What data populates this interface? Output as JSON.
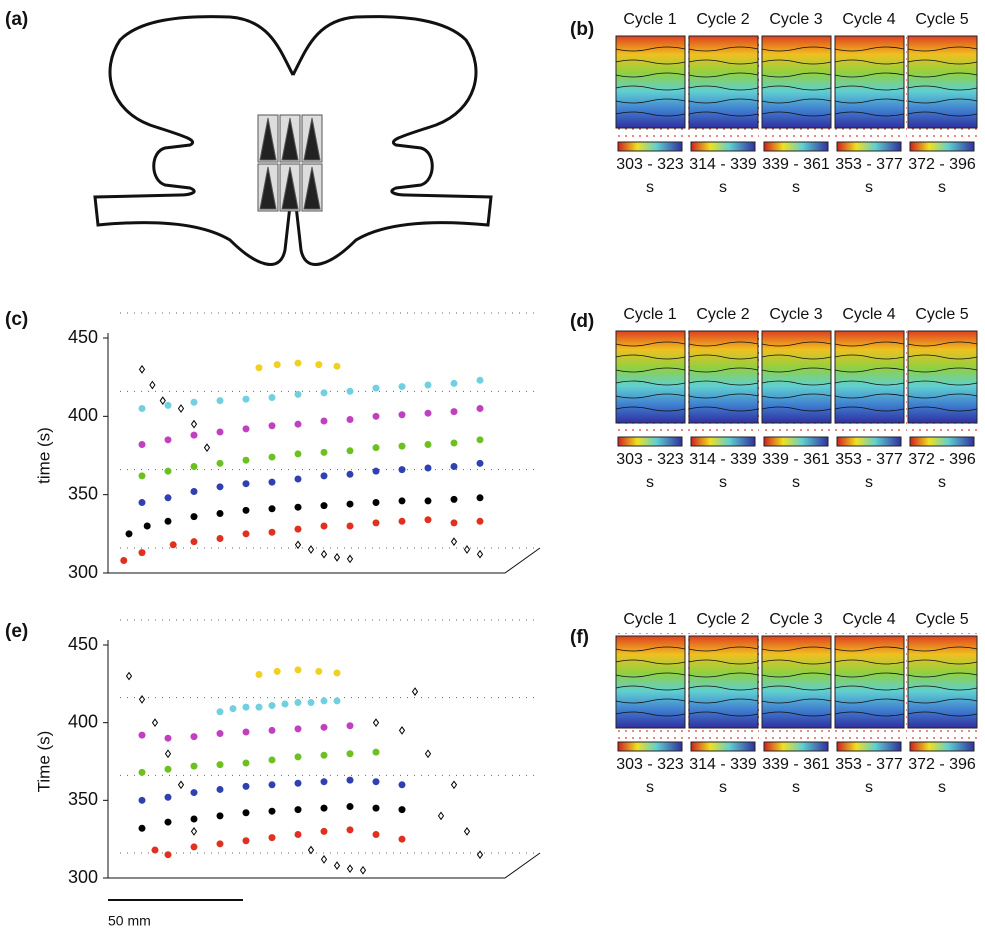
{
  "panel_labels": [
    "(a)",
    "(b)",
    "(c)",
    "(d)",
    "(e)",
    "(f)"
  ],
  "maps": [
    {
      "titles": [
        "Cycle 1",
        "Cycle 2",
        "Cycle 3",
        "Cycle 4",
        "Cycle 5"
      ],
      "ranges": [
        "303 - 323",
        "314 - 339",
        "339 - 361",
        "353 - 377",
        "372 - 396"
      ],
      "units": [
        "s",
        "s",
        "s",
        "s",
        "s"
      ]
    },
    {
      "titles": [
        "Cycle 1",
        "Cycle 2",
        "Cycle 3",
        "Cycle 4",
        "Cycle 5"
      ],
      "ranges": [
        "303 - 323",
        "314 - 339",
        "339 - 361",
        "353 - 377",
        "372 - 396"
      ],
      "units": [
        "s",
        "s",
        "s",
        "s",
        "s"
      ]
    },
    {
      "titles": [
        "Cycle 1",
        "Cycle 2",
        "Cycle 3",
        "Cycle 4",
        "Cycle 5"
      ],
      "ranges": [
        "303 - 323",
        "314 - 339",
        "339 - 361",
        "353 - 377",
        "372 - 396"
      ],
      "units": [
        "s",
        "s",
        "s",
        "s",
        "s"
      ]
    }
  ],
  "scale_bar": "50 mm",
  "chart_data": [
    {
      "type": "scatter",
      "ylabel": "time (s)",
      "ylim": [
        300,
        450
      ],
      "yticks": [
        300,
        350,
        400,
        450
      ],
      "xlim": [
        0,
        150
      ],
      "series": [
        {
          "color": "#e03020",
          "marker": "circle",
          "x": [
            3,
            10,
            22,
            30,
            40,
            50,
            60,
            70,
            80,
            90,
            100,
            110,
            120,
            130,
            140
          ],
          "values": [
            308,
            313,
            318,
            320,
            322,
            325,
            326,
            328,
            330,
            330,
            332,
            333,
            334,
            332,
            333
          ]
        },
        {
          "color": "#000000",
          "marker": "circle",
          "x": [
            5,
            12,
            20,
            30,
            40,
            50,
            60,
            70,
            80,
            90,
            100,
            110,
            120,
            130,
            140
          ],
          "values": [
            325,
            330,
            333,
            336,
            338,
            340,
            341,
            342,
            343,
            344,
            345,
            346,
            346,
            347,
            348
          ]
        },
        {
          "color": "#3040b0",
          "marker": "circle",
          "x": [
            10,
            20,
            30,
            40,
            50,
            60,
            70,
            80,
            90,
            100,
            110,
            120,
            130,
            140
          ],
          "values": [
            345,
            348,
            352,
            355,
            357,
            358,
            360,
            362,
            363,
            365,
            366,
            367,
            368,
            370
          ]
        },
        {
          "color": "#6cc020",
          "marker": "circle",
          "x": [
            10,
            20,
            30,
            40,
            50,
            60,
            70,
            80,
            90,
            100,
            110,
            120,
            130,
            140
          ],
          "values": [
            362,
            365,
            368,
            370,
            372,
            374,
            376,
            377,
            378,
            380,
            381,
            382,
            383,
            385
          ]
        },
        {
          "color": "#c040c0",
          "marker": "circle",
          "x": [
            10,
            20,
            30,
            40,
            50,
            60,
            70,
            80,
            90,
            100,
            110,
            120,
            130,
            140
          ],
          "values": [
            382,
            385,
            388,
            390,
            392,
            394,
            395,
            397,
            398,
            400,
            401,
            402,
            403,
            405
          ]
        },
        {
          "color": "#70d0e0",
          "marker": "circle",
          "x": [
            10,
            20,
            30,
            40,
            50,
            60,
            70,
            80,
            90,
            100,
            110,
            120,
            130,
            140
          ],
          "values": [
            405,
            407,
            409,
            410,
            411,
            412,
            414,
            415,
            416,
            418,
            419,
            420,
            421,
            423
          ]
        },
        {
          "color": "#f0d020",
          "marker": "circle",
          "x": [
            55,
            62,
            70,
            78,
            85
          ],
          "values": [
            431,
            433,
            434,
            433,
            432
          ]
        },
        {
          "color": "#000000",
          "marker": "diamond",
          "x": [
            10,
            14,
            18,
            25,
            30,
            35,
            70,
            75,
            80,
            85,
            90,
            130,
            135,
            140
          ],
          "values": [
            430,
            420,
            410,
            405,
            395,
            380,
            318,
            315,
            312,
            310,
            309,
            320,
            315,
            312
          ]
        }
      ]
    },
    {
      "type": "scatter",
      "ylabel": "Time (s)",
      "ylim": [
        300,
        450
      ],
      "yticks": [
        300,
        350,
        400,
        450
      ],
      "xlim": [
        0,
        150
      ],
      "series": [
        {
          "color": "#e03020",
          "marker": "circle",
          "x": [
            15,
            20,
            30,
            40,
            50,
            60,
            70,
            80,
            90,
            100,
            110
          ],
          "values": [
            318,
            315,
            320,
            322,
            324,
            326,
            328,
            330,
            331,
            328,
            325
          ]
        },
        {
          "color": "#000000",
          "marker": "circle",
          "x": [
            10,
            20,
            30,
            40,
            50,
            60,
            70,
            80,
            90,
            100,
            110
          ],
          "values": [
            332,
            336,
            338,
            340,
            342,
            343,
            344,
            345,
            346,
            345,
            344
          ]
        },
        {
          "color": "#3040b0",
          "marker": "circle",
          "x": [
            10,
            20,
            30,
            40,
            50,
            60,
            70,
            80,
            90,
            100,
            110
          ],
          "values": [
            350,
            352,
            355,
            357,
            359,
            360,
            361,
            362,
            363,
            362,
            360
          ]
        },
        {
          "color": "#6cc020",
          "marker": "circle",
          "x": [
            10,
            20,
            30,
            40,
            50,
            60,
            70,
            80,
            90,
            100
          ],
          "values": [
            368,
            370,
            372,
            373,
            374,
            376,
            378,
            379,
            380,
            381
          ]
        },
        {
          "color": "#c040c0",
          "marker": "circle",
          "x": [
            10,
            20,
            30,
            40,
            50,
            60,
            70,
            80,
            90
          ],
          "values": [
            392,
            390,
            391,
            393,
            394,
            395,
            396,
            397,
            398
          ]
        },
        {
          "color": "#70d0e0",
          "marker": "circle",
          "x": [
            40,
            45,
            50,
            55,
            60,
            65,
            70,
            75,
            80,
            85
          ],
          "values": [
            407,
            409,
            410,
            410,
            411,
            412,
            413,
            413,
            414,
            414
          ]
        },
        {
          "color": "#f0d020",
          "marker": "circle",
          "x": [
            55,
            62,
            70,
            78,
            85
          ],
          "values": [
            431,
            433,
            434,
            433,
            432
          ]
        },
        {
          "color": "#000000",
          "marker": "diamond",
          "x": [
            5,
            10,
            15,
            20,
            25,
            30,
            75,
            80,
            85,
            90,
            95,
            100,
            110,
            115,
            120,
            125,
            130,
            135,
            140
          ],
          "values": [
            430,
            415,
            400,
            380,
            360,
            330,
            318,
            312,
            308,
            306,
            305,
            400,
            395,
            420,
            380,
            340,
            360,
            330,
            315
          ]
        }
      ]
    }
  ]
}
